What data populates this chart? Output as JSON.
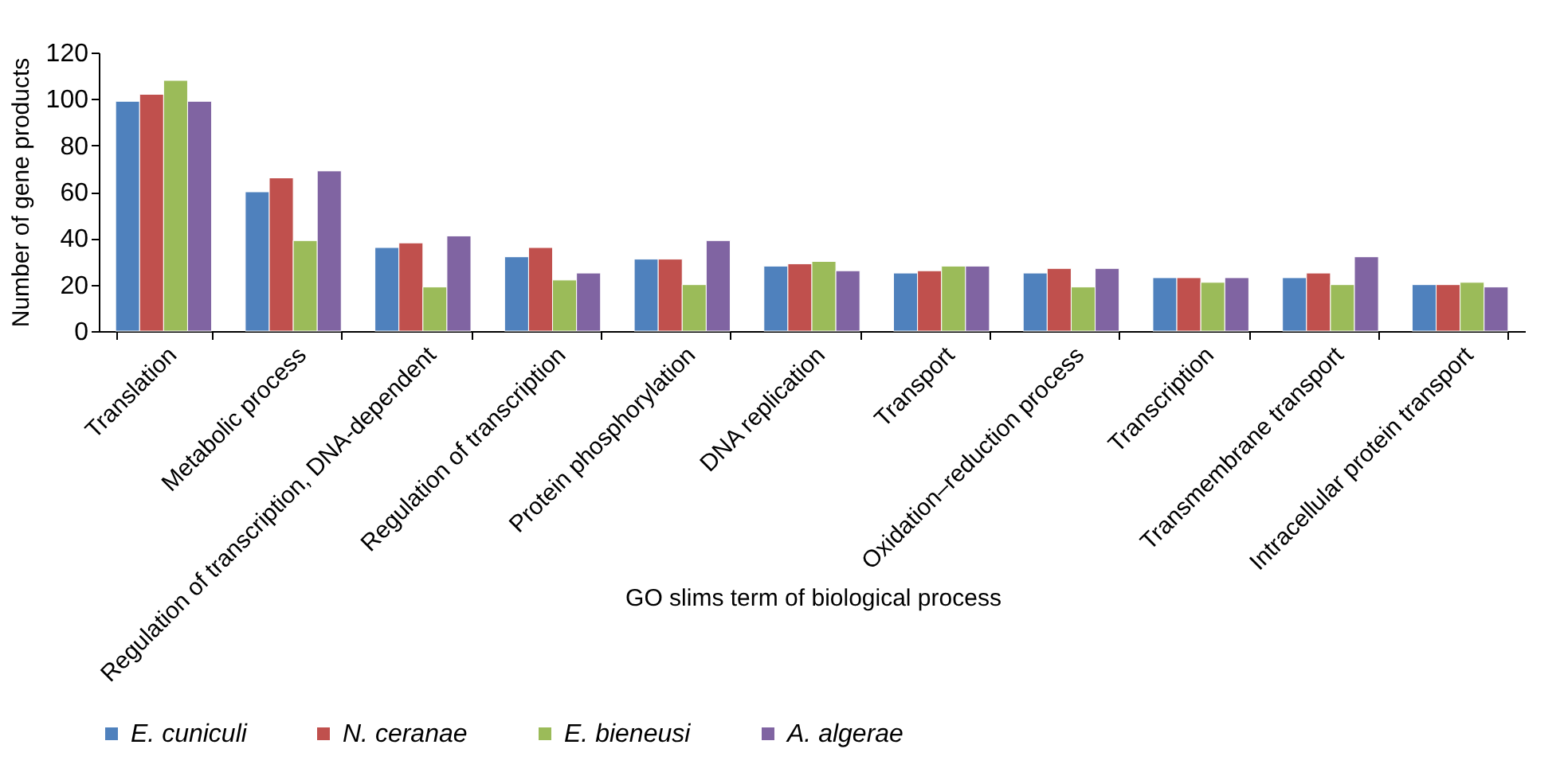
{
  "chart_data": {
    "type": "bar",
    "xlabel": "GO slims term of biological process",
    "ylabel": "Number of gene products",
    "categories": [
      "Translation",
      "Metabolic process",
      "Regulation of transcription, DNA-dependent",
      "Regulation of transcription",
      "Protein phosphorylation",
      "DNA replication",
      "Transport",
      "Oxidation–reduction process",
      "Transcription",
      "Transmembrane transport",
      "Intracellular protein transport"
    ],
    "series": [
      {
        "name": "E. cuniculi",
        "color": "#4f81bd",
        "values": [
          99,
          60,
          36,
          32,
          31,
          28,
          25,
          25,
          23,
          23,
          20
        ]
      },
      {
        "name": "N. ceranae",
        "color": "#c0504d",
        "values": [
          102,
          66,
          38,
          36,
          31,
          29,
          26,
          27,
          23,
          25,
          20
        ]
      },
      {
        "name": "E. bieneusi",
        "color": "#9bbb59",
        "values": [
          108,
          39,
          19,
          22,
          20,
          30,
          28,
          19,
          21,
          20,
          21
        ]
      },
      {
        "name": "A. algerae",
        "color": "#8064a2",
        "values": [
          99,
          69,
          41,
          25,
          39,
          26,
          28,
          27,
          23,
          32,
          19
        ]
      }
    ],
    "ylim": [
      0,
      120
    ],
    "yticks": [
      0,
      20,
      40,
      60,
      80,
      100,
      120
    ],
    "grid": false,
    "legend": "bottom"
  }
}
